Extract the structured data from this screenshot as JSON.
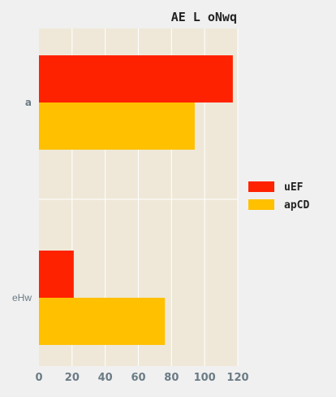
{
  "chart_data": {
    "type": "bar",
    "orientation": "horizontal",
    "title": "AE L oNwq",
    "xlabel": "",
    "ylabel": "",
    "categories": [
      "a",
      "eHw"
    ],
    "series": [
      {
        "name": "uEF",
        "values": [
          117,
          21
        ],
        "color": "#ff2200"
      },
      {
        "name": "apCD",
        "values": [
          94,
          76
        ],
        "color": "#ffc000"
      }
    ],
    "xlim": [
      0,
      120
    ],
    "xticks": [
      "0",
      "20",
      "40",
      "60",
      "80",
      "100",
      "120"
    ],
    "grid": true,
    "legend_position": "right",
    "plot_background": "#efe8d8",
    "grid_color": "#ffffff"
  }
}
